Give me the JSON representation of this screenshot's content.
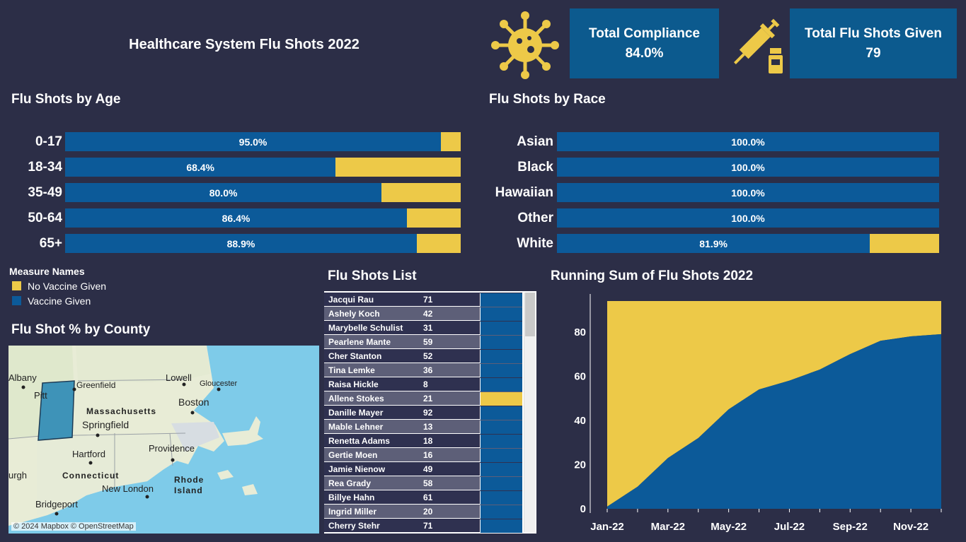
{
  "header": {
    "title": "Healthcare System Flu Shots 2022"
  },
  "kpis": [
    {
      "label": "Total Compliance",
      "value": "84.0%"
    },
    {
      "label": "Total Flu Shots Given",
      "value": "79"
    }
  ],
  "icons": [
    "virus-icon",
    "syringe-vial-icon"
  ],
  "colors": {
    "vaccine_given": "#0c5a99",
    "no_vaccine_given": "#edc948",
    "background": "#2c2e47",
    "kpi_background": "#0c5a8e"
  },
  "legend": {
    "title": "Measure Names",
    "items": [
      {
        "label": "No Vaccine Given",
        "color": "#edc948"
      },
      {
        "label": "Vaccine Given",
        "color": "#0c5a99"
      }
    ]
  },
  "map": {
    "title": "Flu Shot % by County",
    "attribution": "© 2024 Mapbox © OpenStreetMap",
    "places": [
      "Albany",
      "Pitt",
      "Greenfield",
      "Lowell",
      "Gloucester",
      "Massachusetts",
      "Boston",
      "Springfield",
      "Hartford",
      "Providence",
      "urgh",
      "Connecticut",
      "Rhode",
      "Island",
      "New London",
      "Bridgeport"
    ]
  },
  "list": {
    "title": "Flu Shots List",
    "rows": [
      {
        "name": "Jacqui Rau",
        "age": "71",
        "status": "given"
      },
      {
        "name": "Ashely Koch",
        "age": "42",
        "status": "given"
      },
      {
        "name": "Marybelle Schulist",
        "age": "31",
        "status": "given"
      },
      {
        "name": "Pearlene Mante",
        "age": "59",
        "status": "given"
      },
      {
        "name": "Cher Stanton",
        "age": "52",
        "status": "given"
      },
      {
        "name": "Tina Lemke",
        "age": "36",
        "status": "given"
      },
      {
        "name": "Raisa Hickle",
        "age": "8",
        "status": "given"
      },
      {
        "name": "Allene Stokes",
        "age": "21",
        "status": "none"
      },
      {
        "name": "Danille Mayer",
        "age": "92",
        "status": "given"
      },
      {
        "name": "Mable Lehner",
        "age": "13",
        "status": "given"
      },
      {
        "name": "Renetta Adams",
        "age": "18",
        "status": "given"
      },
      {
        "name": "Gertie Moen",
        "age": "16",
        "status": "given"
      },
      {
        "name": "Jamie Nienow",
        "age": "49",
        "status": "given"
      },
      {
        "name": "Rea Grady",
        "age": "58",
        "status": "given"
      },
      {
        "name": "Billye Hahn",
        "age": "61",
        "status": "given"
      },
      {
        "name": "Ingrid Miller",
        "age": "20",
        "status": "given"
      },
      {
        "name": "Cherry Stehr",
        "age": "71",
        "status": "given"
      }
    ]
  },
  "chart_data": [
    {
      "type": "bar",
      "title": "Flu Shots by Age",
      "orientation": "horizontal",
      "stacked": "percent",
      "categories": [
        "0-17",
        "18-34",
        "35-49",
        "50-64",
        "65+"
      ],
      "series": [
        {
          "name": "Vaccine Given",
          "values": [
            95.0,
            68.4,
            80.0,
            86.4,
            88.9
          ]
        },
        {
          "name": "No Vaccine Given",
          "values": [
            5.0,
            31.6,
            20.0,
            13.6,
            11.1
          ]
        }
      ],
      "data_labels": [
        "95.0%",
        "68.4%",
        "80.0%",
        "86.4%",
        "88.9%"
      ],
      "xlim": [
        0,
        100
      ]
    },
    {
      "type": "bar",
      "title": "Flu Shots by Race",
      "orientation": "horizontal",
      "stacked": "percent",
      "categories": [
        "Asian",
        "Black",
        "Hawaiian",
        "Other",
        "White"
      ],
      "series": [
        {
          "name": "Vaccine Given",
          "values": [
            100.0,
            100.0,
            100.0,
            100.0,
            81.9
          ]
        },
        {
          "name": "No Vaccine Given",
          "values": [
            0,
            0,
            0,
            0,
            18.1
          ]
        }
      ],
      "data_labels": [
        "100.0%",
        "100.0%",
        "100.0%",
        "100.0%",
        "81.9%"
      ],
      "xlim": [
        0,
        100
      ]
    },
    {
      "type": "area",
      "title": "Running Sum of Flu Shots 2022",
      "x": [
        "Jan-22",
        "Feb-22",
        "Mar-22",
        "Apr-22",
        "May-22",
        "Jun-22",
        "Jul-22",
        "Aug-22",
        "Sep-22",
        "Oct-22",
        "Nov-22",
        "Dec-22"
      ],
      "x_tick_labels": [
        "Jan-22",
        "Mar-22",
        "May-22",
        "Jul-22",
        "Sep-22",
        "Nov-22"
      ],
      "series": [
        {
          "name": "Vaccine Given",
          "values": [
            1,
            10,
            23,
            32,
            45,
            54,
            58,
            63,
            70,
            76,
            78,
            79
          ]
        },
        {
          "name": "No Vaccine Given",
          "values": [
            93,
            84,
            71,
            62,
            49,
            40,
            36,
            31,
            24,
            18,
            16,
            15
          ]
        }
      ],
      "ylim": [
        0,
        94
      ],
      "y_ticks": [
        0,
        20,
        40,
        60,
        80
      ]
    }
  ]
}
